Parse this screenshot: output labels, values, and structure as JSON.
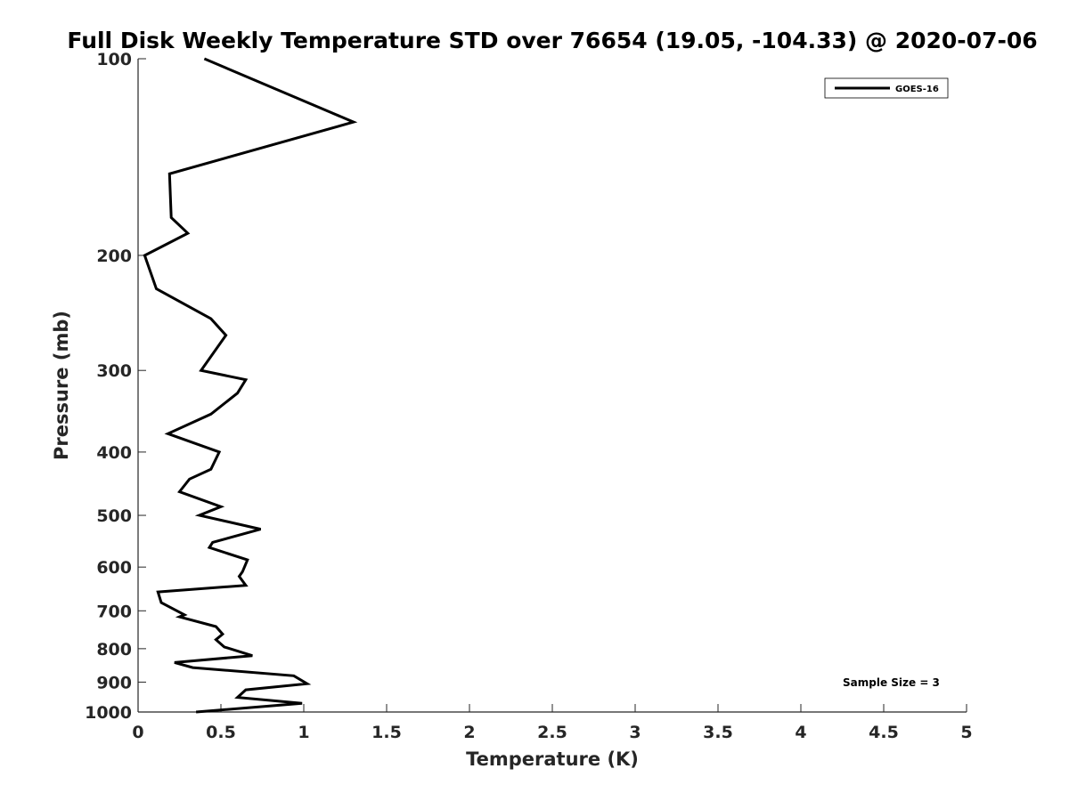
{
  "chart_data": {
    "type": "line",
    "title": "Full Disk Weekly Temperature STD over 76654 (19.05, -104.33) @ 2020-07-06",
    "xlabel": "Temperature (K)",
    "ylabel": "Pressure (mb)",
    "xlim": [
      0,
      5
    ],
    "ylim": [
      100,
      1000
    ],
    "y_scale": "log",
    "y_reversed": true,
    "xticks": [
      0,
      0.5,
      1,
      1.5,
      2,
      2.5,
      3,
      3.5,
      4,
      4.5,
      5
    ],
    "xtick_labels": [
      "0",
      "0.5",
      "1",
      "1.5",
      "2",
      "2.5",
      "3",
      "3.5",
      "4",
      "4.5",
      "5"
    ],
    "yticks": [
      100,
      200,
      300,
      400,
      500,
      600,
      700,
      800,
      900,
      1000
    ],
    "ytick_labels": [
      "100",
      "200",
      "300",
      "400",
      "500",
      "600",
      "700",
      "800",
      "900",
      "1000"
    ],
    "grid": false,
    "legend_position": "top-right",
    "annotation": "Sample Size = 3",
    "series": [
      {
        "name": "GOES-16",
        "color": "#000000",
        "points": [
          [
            0.4,
            100
          ],
          [
            1.3,
            125
          ],
          [
            0.19,
            150
          ],
          [
            0.2,
            175
          ],
          [
            0.3,
            185
          ],
          [
            0.04,
            200
          ],
          [
            0.11,
            225
          ],
          [
            0.44,
            250
          ],
          [
            0.53,
            265
          ],
          [
            0.38,
            300
          ],
          [
            0.65,
            310
          ],
          [
            0.6,
            325
          ],
          [
            0.44,
            350
          ],
          [
            0.18,
            375
          ],
          [
            0.49,
            400
          ],
          [
            0.44,
            425
          ],
          [
            0.31,
            440
          ],
          [
            0.25,
            460
          ],
          [
            0.5,
            485
          ],
          [
            0.37,
            500
          ],
          [
            0.74,
            525
          ],
          [
            0.45,
            550
          ],
          [
            0.43,
            560
          ],
          [
            0.66,
            585
          ],
          [
            0.63,
            610
          ],
          [
            0.61,
            620
          ],
          [
            0.65,
            640
          ],
          [
            0.12,
            655
          ],
          [
            0.14,
            680
          ],
          [
            0.28,
            710
          ],
          [
            0.25,
            715
          ],
          [
            0.47,
            740
          ],
          [
            0.51,
            760
          ],
          [
            0.47,
            775
          ],
          [
            0.52,
            795
          ],
          [
            0.69,
            820
          ],
          [
            0.22,
            840
          ],
          [
            0.33,
            855
          ],
          [
            0.94,
            880
          ],
          [
            1.02,
            905
          ],
          [
            0.65,
            925
          ],
          [
            0.6,
            950
          ],
          [
            0.99,
            970
          ],
          [
            0.35,
            1000
          ]
        ]
      }
    ]
  }
}
